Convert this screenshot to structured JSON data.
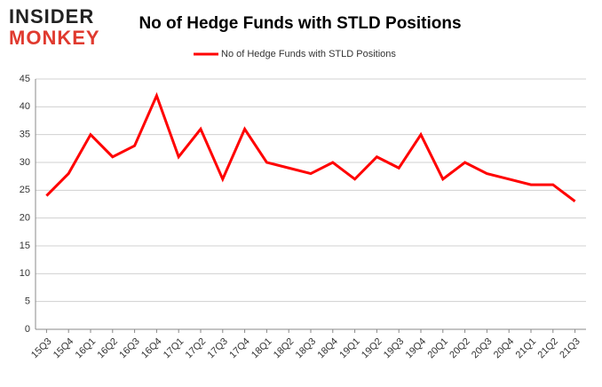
{
  "logo": {
    "line1": "INSIDER",
    "line2": "MONKEY"
  },
  "chart_data": {
    "type": "line",
    "title": "No of Hedge Funds with STLD Positions",
    "categories": [
      "15Q3",
      "15Q4",
      "16Q1",
      "16Q2",
      "16Q3",
      "16Q4",
      "17Q1",
      "17Q2",
      "17Q3",
      "17Q4",
      "18Q1",
      "18Q2",
      "18Q3",
      "18Q4",
      "19Q1",
      "19Q2",
      "19Q3",
      "19Q4",
      "20Q1",
      "20Q2",
      "20Q3",
      "20Q4",
      "21Q1",
      "21Q2",
      "21Q3"
    ],
    "series": [
      {
        "name": "No of Hedge Funds with STLD Positions",
        "color": "#ff0000",
        "values": [
          24,
          28,
          35,
          31,
          33,
          42,
          31,
          36,
          27,
          36,
          30,
          29,
          28,
          30,
          27,
          31,
          29,
          35,
          27,
          30,
          28,
          27,
          26,
          26,
          23
        ]
      }
    ],
    "ylim": [
      0,
      45
    ],
    "yticks": [
      0,
      5,
      10,
      15,
      20,
      25,
      30,
      35,
      40,
      45
    ],
    "grid": true,
    "legend": "top"
  }
}
